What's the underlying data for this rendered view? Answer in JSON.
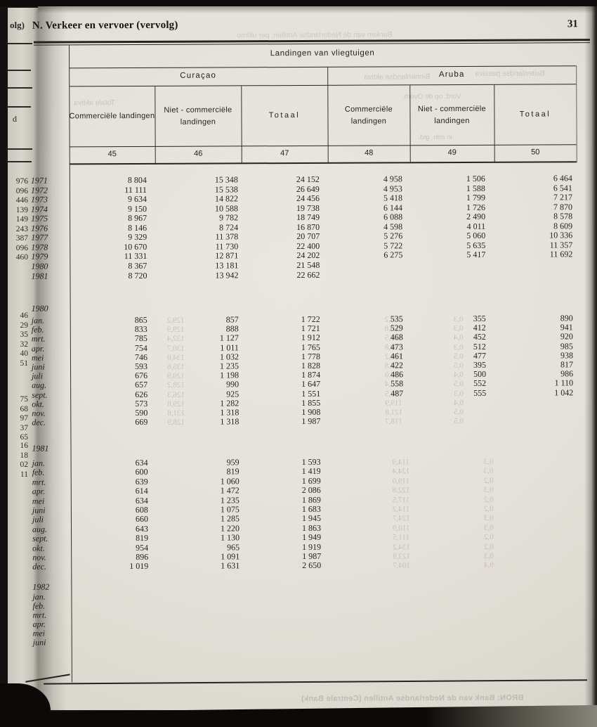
{
  "page": {
    "section_header": "N. Verkeer en vervoer (vervolg)",
    "page_number": "31"
  },
  "table": {
    "title": "Landingen van vliegtuigen",
    "region_headers": [
      "Curaçao",
      "Aruba"
    ],
    "column_headers": [
      "Commerciële landingen",
      "Niet - commerciële landingen",
      "Totaal",
      "Commerciële landingen",
      "Niet - commerciële landingen",
      "Totaal"
    ],
    "column_numbers": [
      "45",
      "46",
      "47",
      "48",
      "49",
      "50"
    ],
    "sections": [
      {
        "year_label": null,
        "rows": [
          {
            "label": "1971",
            "values": [
              "8 804",
              "15 348",
              "24 152",
              "4 958",
              "1 506",
              "6 464"
            ]
          },
          {
            "label": "1972",
            "values": [
              "11 111",
              "15 538",
              "26 649",
              "4 953",
              "1 588",
              "6 541"
            ]
          },
          {
            "label": "1973",
            "values": [
              "9 634",
              "14 822",
              "24 456",
              "5 418",
              "1 799",
              "7 217"
            ]
          },
          {
            "label": "1974",
            "values": [
              "9 150",
              "10 588",
              "19 738",
              "6 144",
              "1 726",
              "7 870"
            ]
          },
          {
            "label": "1975",
            "values": [
              "8 967",
              "9 782",
              "18 749",
              "6 088",
              "2 490",
              "8 578"
            ]
          },
          {
            "label": "1976",
            "values": [
              "8 146",
              "8 724",
              "16 870",
              "4 598",
              "4 011",
              "8 609"
            ]
          },
          {
            "label": "1977",
            "values": [
              "9 329",
              "11 378",
              "20 707",
              "5 276",
              "5 060",
              "10 336"
            ]
          },
          {
            "label": "1978",
            "values": [
              "10 670",
              "11 730",
              "22 400",
              "5 722",
              "5 635",
              "11 357"
            ]
          },
          {
            "label": "1979",
            "values": [
              "11 331",
              "12 871",
              "24 202",
              "6 275",
              "5 417",
              "11 692"
            ]
          },
          {
            "label": "1980",
            "values": [
              "8 367",
              "13 181",
              "21 548",
              "",
              "",
              ""
            ]
          },
          {
            "label": "1981",
            "values": [
              "8 720",
              "13 942",
              "22 662",
              "",
              "",
              ""
            ]
          }
        ]
      },
      {
        "year_label": "1980",
        "rows": [
          {
            "label": "jan.",
            "values": [
              "865",
              "857",
              "1 722",
              "535",
              "355",
              "890"
            ]
          },
          {
            "label": "feb.",
            "values": [
              "833",
              "888",
              "1 721",
              "529",
              "412",
              "941"
            ]
          },
          {
            "label": "mrt.",
            "values": [
              "785",
              "1 127",
              "1 912",
              "468",
              "452",
              "920"
            ]
          },
          {
            "label": "apr.",
            "values": [
              "754",
              "1 011",
              "1 765",
              "473",
              "512",
              "985"
            ]
          },
          {
            "label": "mei",
            "values": [
              "746",
              "1 032",
              "1 778",
              "461",
              "477",
              "938"
            ]
          },
          {
            "label": "juni",
            "values": [
              "593",
              "1 235",
              "1 828",
              "422",
              "395",
              "817"
            ]
          },
          {
            "label": "juli",
            "values": [
              "676",
              "1 198",
              "1 874",
              "486",
              "500",
              "986"
            ]
          },
          {
            "label": "aug.",
            "values": [
              "657",
              "990",
              "1 647",
              "558",
              "552",
              "1 110"
            ]
          },
          {
            "label": "sept.",
            "values": [
              "626",
              "925",
              "1 551",
              "487",
              "555",
              "1 042"
            ]
          },
          {
            "label": "okt.",
            "values": [
              "573",
              "1 282",
              "1 855",
              "",
              "",
              ""
            ]
          },
          {
            "label": "nov.",
            "values": [
              "590",
              "1 318",
              "1 908",
              "",
              "",
              ""
            ]
          },
          {
            "label": "dec.",
            "values": [
              "669",
              "1 318",
              "1 987",
              "",
              "",
              ""
            ]
          }
        ]
      },
      {
        "year_label": "1981",
        "rows": [
          {
            "label": "jan.",
            "values": [
              "634",
              "959",
              "1 593",
              "",
              "",
              ""
            ]
          },
          {
            "label": "feb.",
            "values": [
              "600",
              "819",
              "1 419",
              "",
              "",
              ""
            ]
          },
          {
            "label": "mrt.",
            "values": [
              "639",
              "1 060",
              "1 699",
              "",
              "",
              ""
            ]
          },
          {
            "label": "apr.",
            "values": [
              "614",
              "1 472",
              "2 086",
              "",
              "",
              ""
            ]
          },
          {
            "label": "mei",
            "values": [
              "634",
              "1 235",
              "1 869",
              "",
              "",
              ""
            ]
          },
          {
            "label": "juni",
            "values": [
              "608",
              "1 075",
              "1 683",
              "",
              "",
              ""
            ]
          },
          {
            "label": "juli",
            "values": [
              "660",
              "1 285",
              "1 945",
              "",
              "",
              ""
            ]
          },
          {
            "label": "aug.",
            "values": [
              "643",
              "1 220",
              "1 863",
              "",
              "",
              ""
            ]
          },
          {
            "label": "sept.",
            "values": [
              "819",
              "1 130",
              "1 949",
              "",
              "",
              ""
            ]
          },
          {
            "label": "okt.",
            "values": [
              "954",
              "965",
              "1 919",
              "",
              "",
              ""
            ]
          },
          {
            "label": "nov.",
            "values": [
              "896",
              "1 091",
              "1 987",
              "",
              "",
              ""
            ]
          },
          {
            "label": "dec.",
            "values": [
              "1 019",
              "1 631",
              "2 650",
              "",
              "",
              ""
            ]
          }
        ]
      },
      {
        "year_label": "1982",
        "rows": [
          {
            "label": "jan.",
            "values": [
              "",
              "",
              "",
              "",
              "",
              ""
            ]
          },
          {
            "label": "feb.",
            "values": [
              "",
              "",
              "",
              "",
              "",
              ""
            ]
          },
          {
            "label": "mrt.",
            "values": [
              "",
              "",
              "",
              "",
              "",
              ""
            ]
          },
          {
            "label": "apr.",
            "values": [
              "",
              "",
              "",
              "",
              "",
              ""
            ]
          },
          {
            "label": "mei",
            "values": [
              "",
              "",
              "",
              "",
              "",
              ""
            ]
          },
          {
            "label": "juni",
            "values": [
              "",
              "",
              "",
              "",
              "",
              ""
            ]
          }
        ]
      }
    ]
  },
  "left_page_edge": {
    "header_fragment": "olg)",
    "text_fragment": "d",
    "number_fragments_a": [
      "976",
      "096",
      "446",
      "139",
      "149",
      "243",
      "387",
      "096",
      "460"
    ],
    "number_fragments_b": [
      "46",
      "29",
      "35",
      "32",
      "40",
      "51"
    ],
    "number_fragments_c": [
      "75",
      "68",
      "97",
      "37",
      "65"
    ],
    "number_fragments_d": [
      "16",
      "18",
      "02",
      "11"
    ]
  },
  "bleedthrough": {
    "top_line": "Banken van de Nederlandse Antillen; per ultimo",
    "label_binnenlandse": "Binnenlandse aktiva",
    "label_buitenlandse": "Buitenlandse passiva",
    "label_totale": "Totale aktiva",
    "label_vord": "Vord. op de Overh.",
    "label_unit": "in mln. gld.",
    "source_line": "BRON: Bank van de Nederlandse Antillen (Centrale Bank)",
    "numbers_1980_a": [
      "129,2",
      "129,9",
      "132,4",
      "130,7",
      "134,0",
      "135,6",
      "120,9",
      "128,2",
      "126,3",
      "129,8",
      "131,8",
      "128,9"
    ],
    "numbers_1980_b": [
      "118,2",
      "118,8",
      "121,5",
      "119,8",
      "123,2",
      "124,8",
      "110,0",
      "115,4",
      "116,5",
      "119,9",
      "121,8",
      "118,7"
    ],
    "numbers_1980_c": [
      "0,3",
      "0,3",
      "0,4",
      "0,3",
      "0,5",
      "0,5",
      "0,4",
      "0,5",
      "0,3",
      "0,4",
      "0,5",
      "0,5"
    ],
    "numbers_1981_a": [
      "114,9",
      "124,4",
      "119,0",
      "122,8",
      "117,5",
      "114,2",
      "124,7",
      "110,9",
      "111,5",
      "134,2",
      "123,9",
      "104,7"
    ],
    "numbers_1981_b": [
      "0,3",
      "0,3",
      "0,2",
      "0,3",
      "0,2",
      "0,2",
      "0,3",
      "0,3",
      "0,2",
      "0,2",
      "0,3",
      "0,4"
    ]
  }
}
